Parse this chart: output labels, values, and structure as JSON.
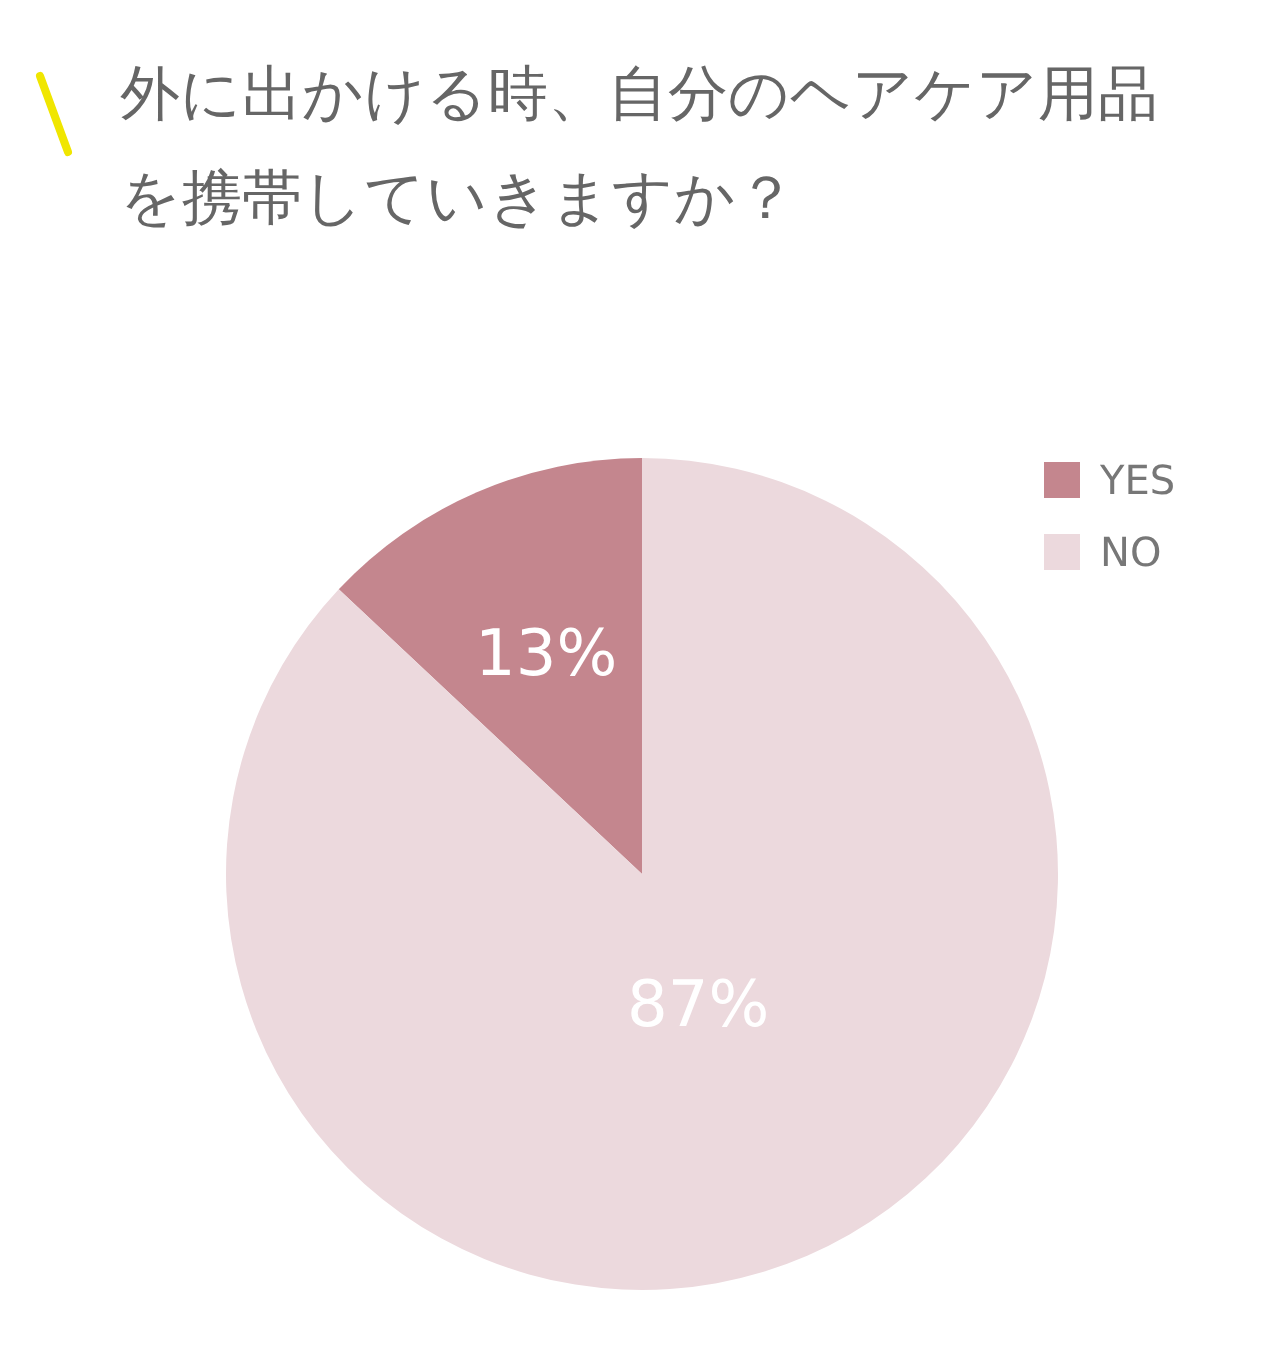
{
  "chart_data": {
    "type": "pie",
    "title": "外に出かける時、自分のヘアケア用品を携帯していきますか？",
    "categories": [
      "YES",
      "NO"
    ],
    "values": [
      13,
      87
    ],
    "colors": [
      "#c4868e",
      "#ecd9dd"
    ],
    "value_labels": [
      "13%",
      "87%"
    ],
    "legend": "top right"
  }
}
